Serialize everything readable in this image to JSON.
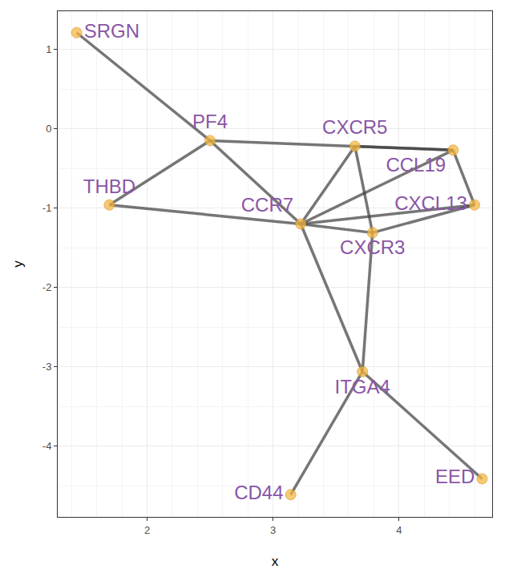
{
  "chart_data": {
    "type": "scatter",
    "x_label": "x",
    "y_label": "y",
    "nodes": [
      {
        "label": "SRGN",
        "x": 1.44,
        "y": 1.21
      },
      {
        "label": "PF4",
        "x": 2.5,
        "y": -0.15
      },
      {
        "label": "THBD",
        "x": 1.7,
        "y": -0.96
      },
      {
        "label": "CXCR5",
        "x": 3.65,
        "y": -0.22
      },
      {
        "label": "CCL19",
        "x": 4.43,
        "y": -0.27
      },
      {
        "label": "CXCL13",
        "x": 4.6,
        "y": -0.96
      },
      {
        "label": "CCR7",
        "x": 3.22,
        "y": -1.2
      },
      {
        "label": "CXCR3",
        "x": 3.79,
        "y": -1.31
      },
      {
        "label": "ITGA4",
        "x": 3.71,
        "y": -3.06
      },
      {
        "label": "CD44",
        "x": 3.14,
        "y": -4.61
      },
      {
        "label": "EED",
        "x": 4.66,
        "y": -4.41
      }
    ],
    "edges": [
      [
        "SRGN",
        "PF4"
      ],
      [
        "PF4",
        "THBD"
      ],
      [
        "PF4",
        "CCL19"
      ],
      [
        "PF4",
        "CCR7"
      ],
      [
        "THBD",
        "CCR7"
      ],
      [
        "CXCR5",
        "CCL19"
      ],
      [
        "CXCR5",
        "CCR7"
      ],
      [
        "CXCR5",
        "CXCR3"
      ],
      [
        "CCL19",
        "CXCL13"
      ],
      [
        "CCL19",
        "CCR7"
      ],
      [
        "CXCL13",
        "CCR7"
      ],
      [
        "CXCL13",
        "CXCR3"
      ],
      [
        "CCR7",
        "CXCR3"
      ],
      [
        "CCR7",
        "ITGA4"
      ],
      [
        "CXCR3",
        "ITGA4"
      ],
      [
        "ITGA4",
        "CD44"
      ],
      [
        "ITGA4",
        "EED"
      ]
    ],
    "color": "#f5b942",
    "xlim": [
      1.29,
      4.74
    ],
    "xticks": [
      2,
      3,
      4
    ],
    "ylim": [
      -4.89,
      1.48
    ],
    "yticks": [
      -4,
      -3,
      -2,
      -1,
      0,
      1
    ],
    "grid": true
  }
}
